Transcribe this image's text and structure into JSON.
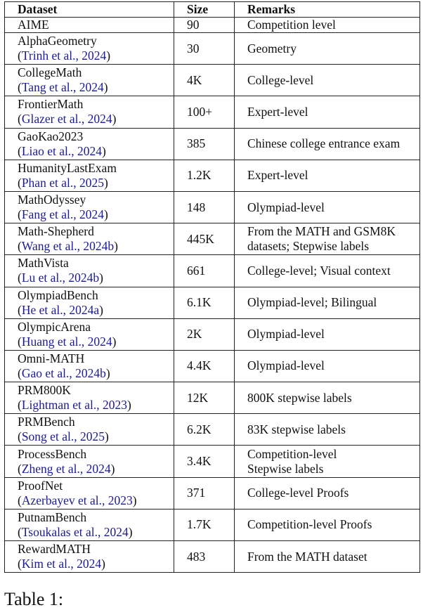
{
  "table": {
    "headers": [
      "Dataset",
      "Size",
      "Remarks"
    ],
    "rows": [
      {
        "name": "AIME",
        "cite": "",
        "size": "90",
        "remarks": [
          "Competition level"
        ]
      },
      {
        "name": "AlphaGeometry",
        "cite": "Trinh et al., 2024",
        "size": "30",
        "remarks": [
          "Geometry"
        ]
      },
      {
        "name": "CollegeMath",
        "cite": "Tang et al., 2024",
        "size": "4K",
        "remarks": [
          "College-level"
        ]
      },
      {
        "name": "FrontierMath",
        "cite": "Glazer et al., 2024",
        "size": "100+",
        "remarks": [
          "Expert-level"
        ]
      },
      {
        "name": "GaoKao2023",
        "cite": "Liao et al., 2024",
        "size": "385",
        "remarks": [
          "Chinese college entrance exam"
        ]
      },
      {
        "name": "HumanityLastExam",
        "cite": "Phan et al., 2025",
        "size": "1.2K",
        "remarks": [
          "Expert-level"
        ]
      },
      {
        "name": "MathOdyssey",
        "cite": "Fang et al., 2024",
        "size": "148",
        "remarks": [
          "Olympiad-level"
        ]
      },
      {
        "name": "Math-Shepherd",
        "cite": "Wang et al., 2024b",
        "size": "445K",
        "remarks": [
          "From the MATH and GSM8K",
          "datasets; Stepwise labels"
        ]
      },
      {
        "name": "MathVista",
        "cite": "Lu et al., 2024b",
        "size": "661",
        "remarks": [
          "College-level; Visual context"
        ]
      },
      {
        "name": "OlympiadBench",
        "cite": "He et al., 2024a",
        "size": "6.1K",
        "remarks": [
          "Olympiad-level; Bilingual"
        ]
      },
      {
        "name": "OlympicArena",
        "cite": "Huang et al., 2024",
        "size": "2K",
        "remarks": [
          "Olympiad-level"
        ]
      },
      {
        "name": "Omni-MATH",
        "cite": "Gao et al., 2024b",
        "size": "4.4K",
        "remarks": [
          "Olympiad-level"
        ]
      },
      {
        "name": "PRM800K",
        "cite": "Lightman et al., 2023",
        "size": "12K",
        "remarks": [
          "800K stepwise labels"
        ]
      },
      {
        "name": "PRMBench",
        "cite": "Song et al., 2025",
        "size": "6.2K",
        "remarks": [
          "83K stepwise labels"
        ]
      },
      {
        "name": "ProcessBench",
        "cite": "Zheng et al., 2024",
        "size": "3.4K",
        "remarks": [
          "Competition-level",
          "Stepwise labels"
        ]
      },
      {
        "name": "ProofNet",
        "cite": "Azerbayev et al., 2023",
        "size": "371",
        "remarks": [
          "College-level Proofs"
        ]
      },
      {
        "name": "PutnamBench",
        "cite": "Tsoukalas et al., 2024",
        "size": "1.7K",
        "remarks": [
          "Competition-level Proofs"
        ]
      },
      {
        "name": "RewardMATH",
        "cite": "Kim et al., 2024",
        "size": "483",
        "remarks": [
          "From the MATH dataset"
        ]
      }
    ]
  },
  "caption": "Table 1:",
  "colors": {
    "citation": "#1a1a9c"
  }
}
